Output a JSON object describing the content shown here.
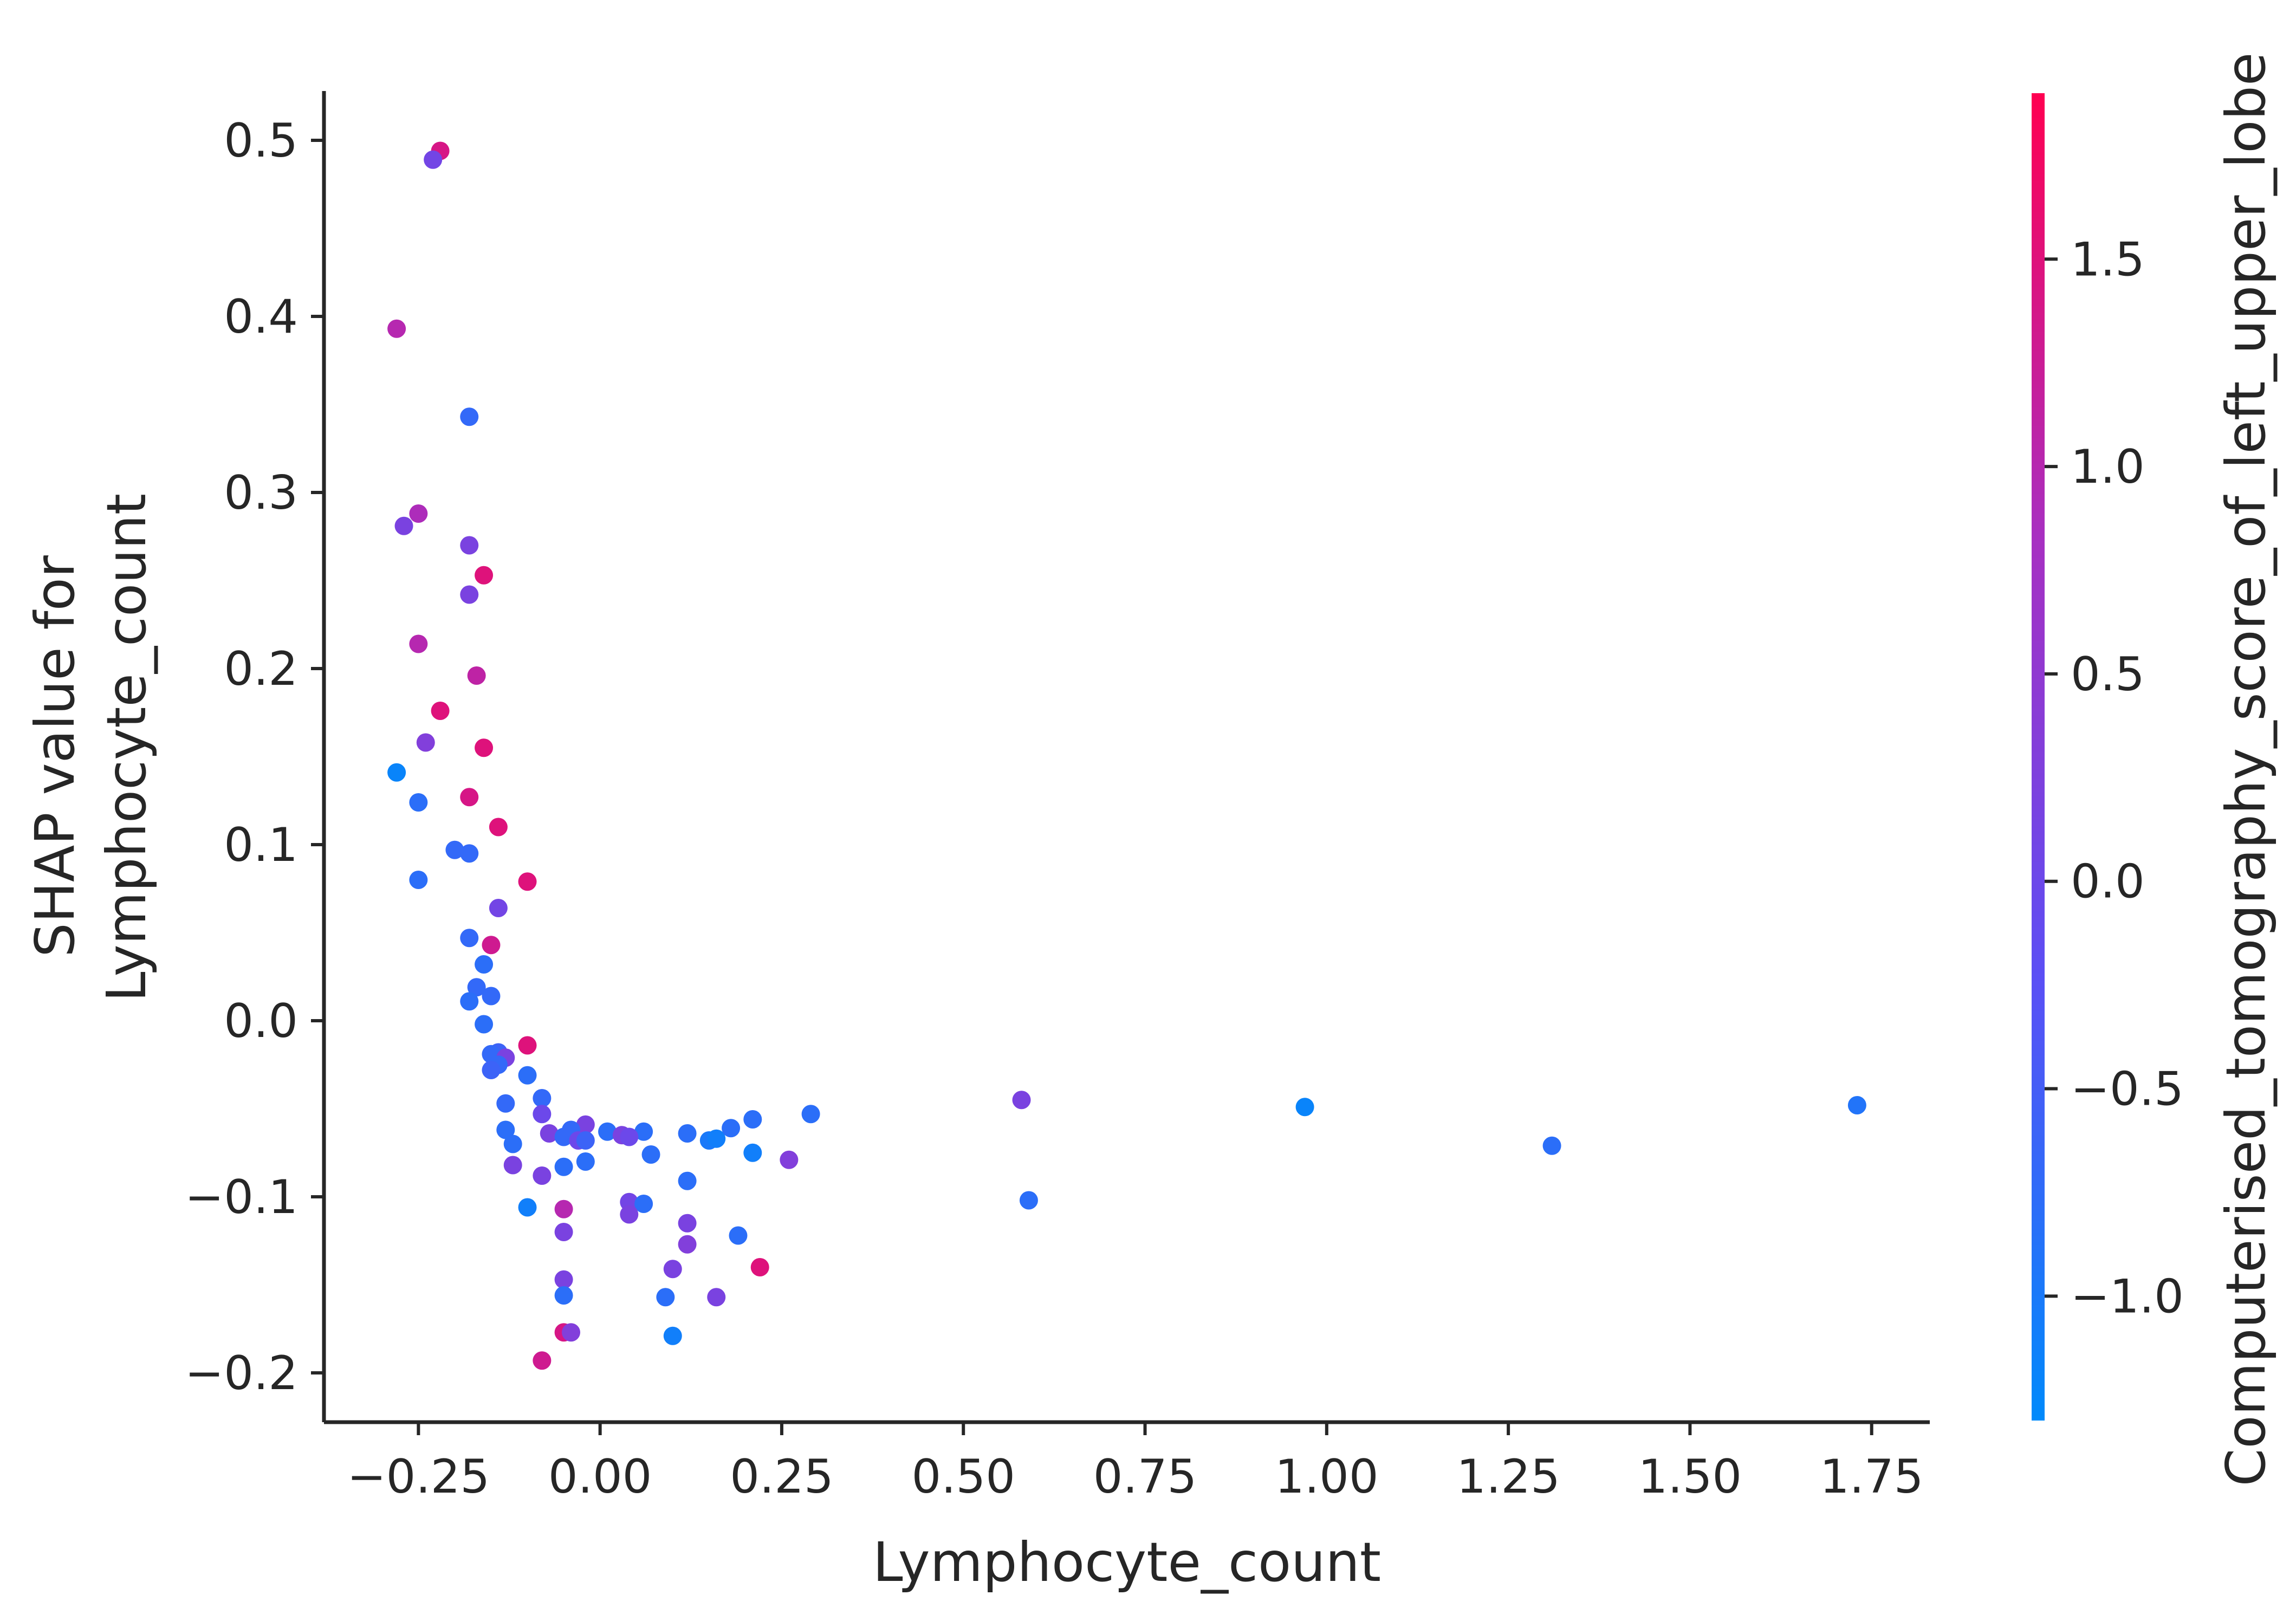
{
  "chart_data": {
    "type": "scatter",
    "title": "",
    "xlabel": "Lymphocyte_count",
    "ylabel": [
      "SHAP value for",
      "Lymphocyte_count"
    ],
    "xlim": [
      -0.38,
      1.83
    ],
    "ylim": [
      -0.228,
      0.528
    ],
    "xticks": [
      -0.25,
      0.0,
      0.25,
      0.5,
      0.75,
      1.0,
      1.25,
      1.5,
      1.75
    ],
    "xtick_labels": [
      "−0.25",
      "0.00",
      "0.25",
      "0.50",
      "0.75",
      "1.00",
      "1.25",
      "1.50",
      "1.75"
    ],
    "yticks": [
      -0.2,
      -0.1,
      0.0,
      0.1,
      0.2,
      0.3,
      0.4,
      0.5
    ],
    "ytick_labels": [
      "−0.2",
      "−0.1",
      "0.0",
      "0.1",
      "0.2",
      "0.3",
      "0.4",
      "0.5"
    ],
    "grid": false,
    "colorbar": {
      "label": "Computerised_tomography_score_of_left_upper_lobe",
      "range": [
        -1.3,
        1.9
      ],
      "ticks": [
        -1.0,
        -0.5,
        0.0,
        0.5,
        1.0,
        1.5
      ],
      "tick_labels": [
        "−1.0",
        "−0.5",
        "0.0",
        "0.5",
        "1.0",
        "1.5"
      ],
      "colormap": [
        "#008afb",
        "#5b4ff5",
        "#a82fc1",
        "#ff0051"
      ]
    },
    "points": [
      {
        "x": -0.22,
        "y": 0.494,
        "c": 1.4
      },
      {
        "x": -0.23,
        "y": 0.489,
        "c": 0.1
      },
      {
        "x": -0.28,
        "y": 0.393,
        "c": 1.0
      },
      {
        "x": -0.18,
        "y": 0.343,
        "c": -0.7
      },
      {
        "x": -0.25,
        "y": 0.288,
        "c": 0.9
      },
      {
        "x": -0.27,
        "y": 0.281,
        "c": 0.2
      },
      {
        "x": -0.18,
        "y": 0.27,
        "c": 0.2
      },
      {
        "x": -0.16,
        "y": 0.253,
        "c": 1.5
      },
      {
        "x": -0.18,
        "y": 0.242,
        "c": 0.2
      },
      {
        "x": -0.25,
        "y": 0.214,
        "c": 1.0
      },
      {
        "x": -0.17,
        "y": 0.196,
        "c": 1.1
      },
      {
        "x": -0.22,
        "y": 0.176,
        "c": 1.5
      },
      {
        "x": -0.24,
        "y": 0.158,
        "c": 0.3
      },
      {
        "x": -0.16,
        "y": 0.155,
        "c": 1.5
      },
      {
        "x": -0.28,
        "y": 0.141,
        "c": -1.2
      },
      {
        "x": -0.18,
        "y": 0.127,
        "c": 1.4
      },
      {
        "x": -0.25,
        "y": 0.124,
        "c": -0.8
      },
      {
        "x": -0.14,
        "y": 0.11,
        "c": 1.5
      },
      {
        "x": -0.2,
        "y": 0.097,
        "c": -0.7
      },
      {
        "x": -0.18,
        "y": 0.095,
        "c": -0.7
      },
      {
        "x": -0.25,
        "y": 0.08,
        "c": -0.8
      },
      {
        "x": -0.1,
        "y": 0.079,
        "c": 1.5
      },
      {
        "x": -0.14,
        "y": 0.064,
        "c": 0.1
      },
      {
        "x": -0.18,
        "y": 0.047,
        "c": -0.7
      },
      {
        "x": -0.15,
        "y": 0.043,
        "c": 1.3
      },
      {
        "x": -0.16,
        "y": 0.032,
        "c": -0.8
      },
      {
        "x": -0.17,
        "y": 0.019,
        "c": -0.7
      },
      {
        "x": -0.15,
        "y": 0.014,
        "c": -0.7
      },
      {
        "x": -0.18,
        "y": 0.011,
        "c": -0.8
      },
      {
        "x": -0.16,
        "y": -0.002,
        "c": -0.8
      },
      {
        "x": -0.1,
        "y": -0.014,
        "c": 1.5
      },
      {
        "x": -0.14,
        "y": -0.018,
        "c": -0.6
      },
      {
        "x": -0.15,
        "y": -0.019,
        "c": -0.7
      },
      {
        "x": -0.13,
        "y": -0.021,
        "c": 0.2
      },
      {
        "x": -0.14,
        "y": -0.025,
        "c": -0.7
      },
      {
        "x": -0.15,
        "y": -0.028,
        "c": -0.6
      },
      {
        "x": -0.1,
        "y": -0.031,
        "c": -0.8
      },
      {
        "x": -0.08,
        "y": -0.044,
        "c": -0.7
      },
      {
        "x": -0.13,
        "y": -0.047,
        "c": -0.7
      },
      {
        "x": -0.08,
        "y": -0.053,
        "c": 0.0
      },
      {
        "x": -0.02,
        "y": -0.059,
        "c": 0.2
      },
      {
        "x": -0.04,
        "y": -0.062,
        "c": -0.7
      },
      {
        "x": 0.01,
        "y": -0.063,
        "c": -0.8
      },
      {
        "x": 0.06,
        "y": -0.063,
        "c": -0.8
      },
      {
        "x": -0.13,
        "y": -0.062,
        "c": -0.8
      },
      {
        "x": -0.07,
        "y": -0.064,
        "c": 0.2
      },
      {
        "x": 0.03,
        "y": -0.065,
        "c": 0.2
      },
      {
        "x": 0.04,
        "y": -0.066,
        "c": 0.0
      },
      {
        "x": -0.05,
        "y": -0.066,
        "c": -0.7
      },
      {
        "x": -0.03,
        "y": -0.068,
        "c": 0.0
      },
      {
        "x": -0.02,
        "y": -0.068,
        "c": -0.6
      },
      {
        "x": 0.12,
        "y": -0.064,
        "c": -0.8
      },
      {
        "x": 0.15,
        "y": -0.068,
        "c": -1.0
      },
      {
        "x": 0.16,
        "y": -0.067,
        "c": -1.1
      },
      {
        "x": 0.18,
        "y": -0.061,
        "c": -0.8
      },
      {
        "x": 0.21,
        "y": -0.056,
        "c": -0.8
      },
      {
        "x": 0.29,
        "y": -0.053,
        "c": -0.8
      },
      {
        "x": -0.12,
        "y": -0.07,
        "c": -0.8
      },
      {
        "x": 0.21,
        "y": -0.075,
        "c": -1.1
      },
      {
        "x": 0.07,
        "y": -0.076,
        "c": -0.8
      },
      {
        "x": 0.26,
        "y": -0.079,
        "c": 0.3
      },
      {
        "x": -0.02,
        "y": -0.08,
        "c": -0.8
      },
      {
        "x": -0.12,
        "y": -0.082,
        "c": 0.2
      },
      {
        "x": -0.05,
        "y": -0.083,
        "c": -0.8
      },
      {
        "x": -0.08,
        "y": -0.088,
        "c": 0.2
      },
      {
        "x": 0.12,
        "y": -0.091,
        "c": -0.8
      },
      {
        "x": 0.04,
        "y": -0.103,
        "c": 0.1
      },
      {
        "x": 0.06,
        "y": -0.104,
        "c": -0.8
      },
      {
        "x": -0.1,
        "y": -0.106,
        "c": -1.1
      },
      {
        "x": -0.05,
        "y": -0.107,
        "c": 1.0
      },
      {
        "x": 0.04,
        "y": -0.11,
        "c": 0.2
      },
      {
        "x": 0.12,
        "y": -0.115,
        "c": 0.2
      },
      {
        "x": -0.05,
        "y": -0.12,
        "c": 0.2
      },
      {
        "x": 0.19,
        "y": -0.122,
        "c": -0.8
      },
      {
        "x": 0.12,
        "y": -0.127,
        "c": 0.3
      },
      {
        "x": 0.22,
        "y": -0.14,
        "c": 1.5
      },
      {
        "x": 0.1,
        "y": -0.141,
        "c": 0.2
      },
      {
        "x": -0.05,
        "y": -0.147,
        "c": 0.2
      },
      {
        "x": -0.05,
        "y": -0.156,
        "c": -0.8
      },
      {
        "x": 0.09,
        "y": -0.157,
        "c": -0.8
      },
      {
        "x": 0.16,
        "y": -0.157,
        "c": 0.2
      },
      {
        "x": -0.05,
        "y": -0.177,
        "c": 1.4
      },
      {
        "x": -0.04,
        "y": -0.177,
        "c": 0.3
      },
      {
        "x": 0.1,
        "y": -0.179,
        "c": -1.1
      },
      {
        "x": -0.08,
        "y": -0.193,
        "c": 1.3
      },
      {
        "x": 0.58,
        "y": -0.045,
        "c": 0.2
      },
      {
        "x": 0.59,
        "y": -0.102,
        "c": -0.8
      },
      {
        "x": 0.97,
        "y": -0.049,
        "c": -1.2
      },
      {
        "x": 1.31,
        "y": -0.071,
        "c": -0.8
      },
      {
        "x": 1.73,
        "y": -0.048,
        "c": -0.9
      }
    ]
  }
}
